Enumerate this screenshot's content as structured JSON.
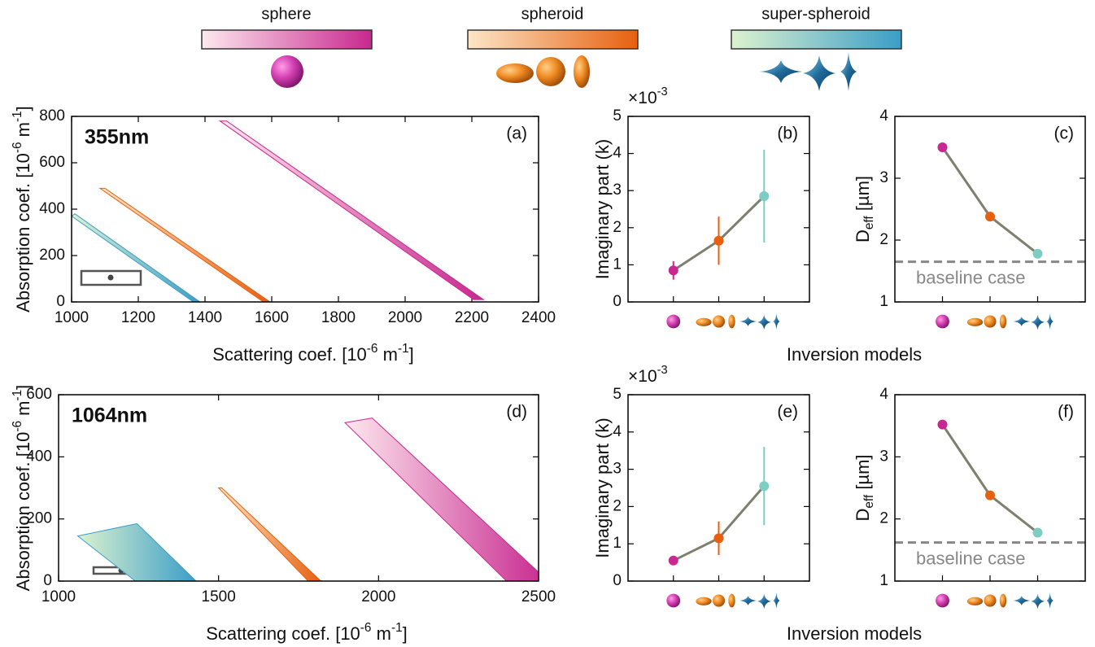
{
  "legend": [
    {
      "name": "sphere",
      "colors": [
        "#fde8ee",
        "#c8288f"
      ]
    },
    {
      "name": "spheroid",
      "colors": [
        "#fde6c8",
        "#e6600f"
      ]
    },
    {
      "name": "super-spheroid",
      "colors": [
        "#dcf2cf",
        "#3b9ec8"
      ]
    }
  ],
  "chart_data": [
    {
      "type": "area",
      "panel": "(a)",
      "tag": "355nm",
      "xlim": [
        1000,
        2400
      ],
      "xticks": [
        1000,
        1200,
        1400,
        1600,
        1800,
        2000,
        2200,
        2400
      ],
      "ylim": [
        0,
        800
      ],
      "yticks": [
        0,
        200,
        400,
        600,
        800
      ],
      "xlabel": [
        {
          "text": "Scattering coef. [10"
        },
        {
          "text": "-6",
          "shift": "super"
        },
        {
          "text": " m"
        },
        {
          "text": "-1",
          "shift": "super"
        },
        {
          "text": "]"
        }
      ],
      "ylabel": [
        {
          "text": "Absorption coef. [10"
        },
        {
          "text": "-6",
          "shift": "super"
        },
        {
          "text": " m"
        },
        {
          "text": "-1",
          "shift": "super"
        },
        {
          "text": "]"
        }
      ],
      "series": [
        {
          "colors": [
            "#dcf2cf",
            "#3b9ec8"
          ],
          "x": [
            1000,
            1010,
            1385,
            1365
          ],
          "values": [
            370,
            380,
            0,
            0
          ]
        },
        {
          "colors": [
            "#fde6c8",
            "#e6600f"
          ],
          "x": [
            1085,
            1100,
            1595,
            1575
          ],
          "values": [
            490,
            490,
            0,
            0
          ]
        },
        {
          "colors": [
            "#fde8ee",
            "#c8288f"
          ],
          "x": [
            1445,
            1465,
            2235,
            2205
          ],
          "values": [
            780,
            780,
            10,
            10
          ]
        }
      ]
    },
    {
      "type": "errorbar",
      "panel": "(b)",
      "categories": [
        null,
        null,
        null
      ],
      "values": [
        0.85,
        1.65,
        2.85
      ],
      "errors": [
        0.25,
        0.65,
        1.25
      ],
      "colors": [
        "#c8288f",
        "#e6600f",
        "#7ecdc3"
      ],
      "line_color": "#7f7f6e",
      "ylim": [
        0,
        5
      ],
      "yticks": [
        0,
        1,
        2,
        3,
        4,
        5
      ],
      "multiplier": [
        {
          "text": "×10"
        },
        {
          "text": "-3",
          "shift": "super"
        }
      ],
      "ylabel": [
        {
          "text": "Imaginary part (k)"
        }
      ],
      "xlabel": [
        {
          "text": "Inversion models"
        }
      ]
    },
    {
      "type": "errorbar",
      "panel": "(c)",
      "categories": [
        null,
        null,
        null
      ],
      "values": [
        3.5,
        2.38,
        1.78
      ],
      "colors": [
        "#c8288f",
        "#e6600f",
        "#7ecdc3"
      ],
      "line_color": "#7f7f6e",
      "ylim": [
        1,
        4
      ],
      "yticks": [
        1,
        2,
        3,
        4
      ],
      "baseline": 1.65,
      "baseline_label": "baseline case",
      "ylabel": [
        {
          "text": "D"
        },
        {
          "text": "eff",
          "shift": "sub"
        },
        {
          "text": " [µm]"
        }
      ]
    },
    {
      "type": "area",
      "panel": "(d)",
      "tag": "1064nm",
      "xlim": [
        1000,
        2500
      ],
      "xticks": [
        1000,
        1500,
        2000,
        2500
      ],
      "ylim": [
        0,
        600
      ],
      "yticks": [
        0,
        200,
        400,
        600
      ],
      "xlabel": [
        {
          "text": "Scattering coef. [10"
        },
        {
          "text": "-6",
          "shift": "super"
        },
        {
          "text": " m"
        },
        {
          "text": "-1",
          "shift": "super"
        },
        {
          "text": "]"
        }
      ],
      "ylabel": [
        {
          "text": "Absorption coef. [10"
        },
        {
          "text": "-6",
          "shift": "super"
        },
        {
          "text": " m"
        },
        {
          "text": "-1",
          "shift": "super"
        },
        {
          "text": "]"
        }
      ],
      "series": [
        {
          "colors": [
            "#dcf2cf",
            "#3b9ec8"
          ],
          "x": [
            1060,
            1245,
            1430,
            1240
          ],
          "values": [
            145,
            185,
            0,
            0
          ]
        },
        {
          "colors": [
            "#fde6c8",
            "#e6600f"
          ],
          "x": [
            1500,
            1510,
            1820,
            1780
          ],
          "values": [
            300,
            300,
            0,
            0
          ]
        },
        {
          "colors": [
            "#fde8ee",
            "#c8288f"
          ],
          "x": [
            1895,
            1980,
            2530,
            2400
          ],
          "values": [
            510,
            525,
            0,
            0
          ]
        }
      ]
    },
    {
      "type": "errorbar",
      "panel": "(e)",
      "categories": [
        null,
        null,
        null
      ],
      "values": [
        0.55,
        1.15,
        2.55
      ],
      "errors": [
        0.1,
        0.45,
        1.05
      ],
      "colors": [
        "#c8288f",
        "#e6600f",
        "#7ecdc3"
      ],
      "line_color": "#7f7f6e",
      "ylim": [
        0,
        5
      ],
      "yticks": [
        0,
        1,
        2,
        3,
        4,
        5
      ],
      "multiplier": [
        {
          "text": "×10"
        },
        {
          "text": "-3",
          "shift": "super"
        }
      ],
      "ylabel": [
        {
          "text": "Imaginary part (k)"
        }
      ],
      "xlabel": [
        {
          "text": "Inversion models"
        }
      ]
    },
    {
      "type": "errorbar",
      "panel": "(f)",
      "categories": [
        null,
        null,
        null
      ],
      "values": [
        3.52,
        2.38,
        1.78
      ],
      "colors": [
        "#c8288f",
        "#e6600f",
        "#7ecdc3"
      ],
      "line_color": "#7f7f6e",
      "ylim": [
        1,
        4
      ],
      "yticks": [
        1,
        2,
        3,
        4
      ],
      "baseline": 1.62,
      "baseline_label": "baseline case",
      "ylabel": [
        {
          "text": "D"
        },
        {
          "text": "eff",
          "shift": "sub"
        },
        {
          "text": " [µm]"
        }
      ]
    }
  ]
}
